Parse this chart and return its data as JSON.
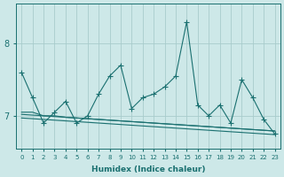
{
  "xlabel": "Humidex (Indice chaleur)",
  "x": [
    0,
    1,
    2,
    3,
    4,
    5,
    6,
    7,
    8,
    9,
    10,
    11,
    12,
    13,
    14,
    15,
    16,
    17,
    18,
    19,
    20,
    21,
    22,
    23
  ],
  "series_main": [
    7.6,
    7.25,
    6.9,
    7.05,
    7.2,
    6.9,
    7.0,
    7.3,
    7.55,
    7.7,
    7.1,
    7.25,
    7.3,
    7.4,
    7.55,
    8.3,
    7.15,
    7.0,
    7.15,
    6.9,
    7.5,
    7.25,
    6.95,
    6.75
  ],
  "series_trend1": [
    7.05,
    7.05,
    7.0,
    7.0,
    6.98,
    6.97,
    6.96,
    6.95,
    6.94,
    6.93,
    6.92,
    6.91,
    6.9,
    6.89,
    6.88,
    6.87,
    6.86,
    6.85,
    6.84,
    6.83,
    6.82,
    6.81,
    6.8,
    6.79
  ],
  "series_trend2": [
    7.02,
    7.01,
    7.0,
    6.99,
    6.98,
    6.97,
    6.96,
    6.95,
    6.94,
    6.93,
    6.92,
    6.91,
    6.9,
    6.89,
    6.88,
    6.87,
    6.86,
    6.85,
    6.84,
    6.83,
    6.82,
    6.81,
    6.8,
    6.79
  ],
  "series_trend3": [
    6.97,
    6.96,
    6.95,
    6.94,
    6.93,
    6.92,
    6.91,
    6.9,
    6.89,
    6.88,
    6.87,
    6.86,
    6.85,
    6.84,
    6.83,
    6.82,
    6.81,
    6.8,
    6.79,
    6.78,
    6.77,
    6.76,
    6.75,
    6.74
  ],
  "ylim_min": 6.55,
  "ylim_max": 8.55,
  "yticks": [
    7,
    8
  ],
  "bg_color": "#cde8e8",
  "grid_color": "#a8cccc",
  "line_color": "#1a7070",
  "markersize": 4
}
